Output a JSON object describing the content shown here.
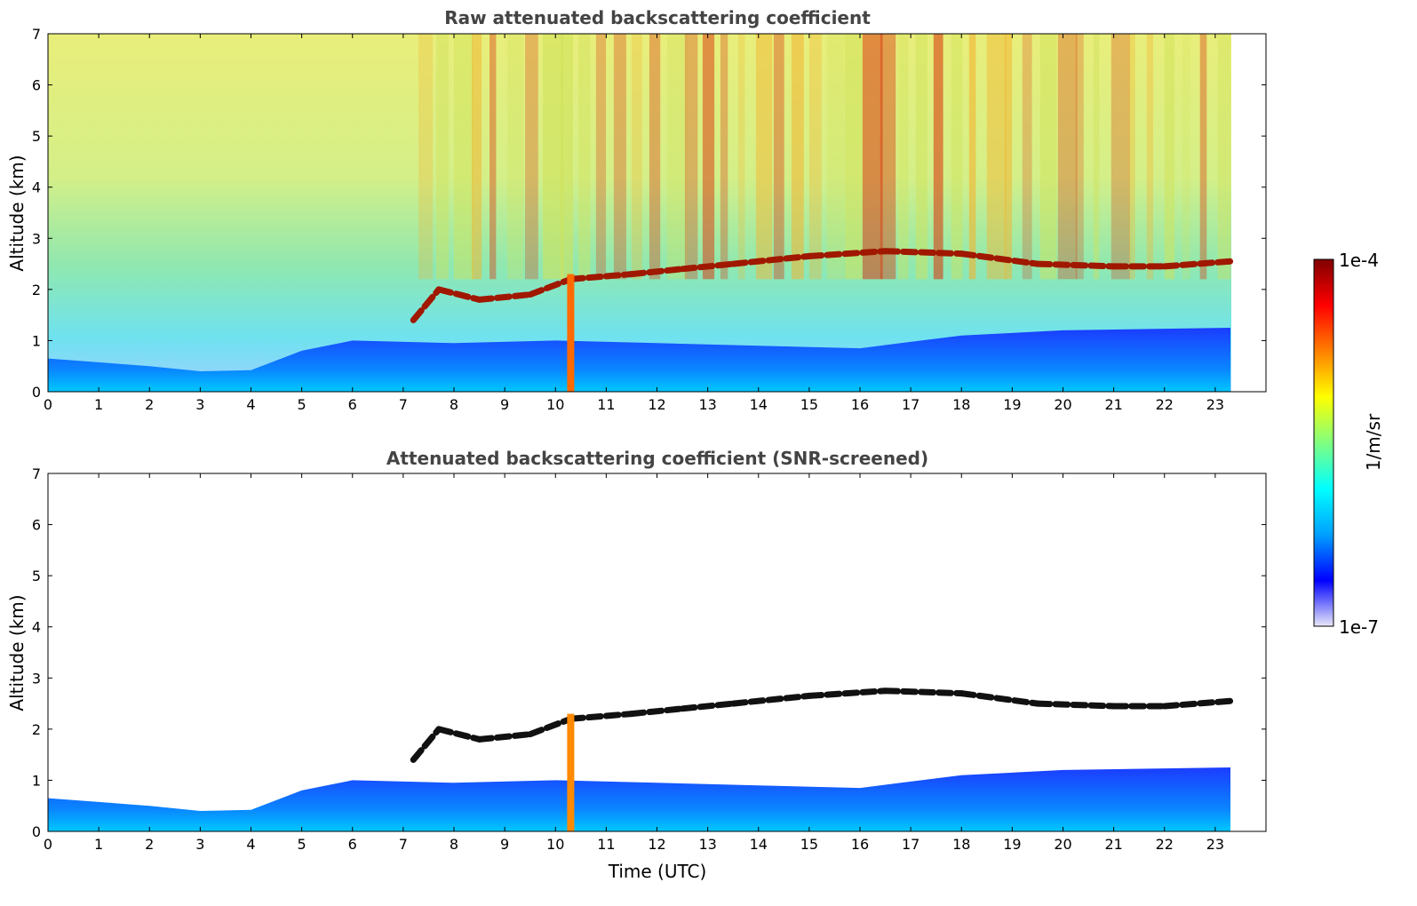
{
  "chart_data": [
    {
      "type": "heatmap",
      "title": "Raw attenuated backscattering coefficient",
      "xlabel": "",
      "ylabel": "Altitude (km)",
      "xlim": [
        0,
        24
      ],
      "ylim": [
        0,
        7
      ],
      "x_ticks": [
        "0",
        "1",
        "2",
        "3",
        "4",
        "5",
        "6",
        "7",
        "8",
        "9",
        "10",
        "11",
        "12",
        "13",
        "14",
        "15",
        "16",
        "17",
        "18",
        "19",
        "20",
        "21",
        "22",
        "23"
      ],
      "y_ticks": [
        "0",
        "1",
        "2",
        "3",
        "4",
        "5",
        "6",
        "7"
      ],
      "data_end_time": 23.3,
      "boundary_layer_top_km": [
        [
          0,
          0.65
        ],
        [
          2,
          0.5
        ],
        [
          3,
          0.4
        ],
        [
          4,
          0.42
        ],
        [
          5,
          0.8
        ],
        [
          6,
          1.0
        ],
        [
          8,
          0.95
        ],
        [
          10,
          1.0
        ],
        [
          12,
          0.95
        ],
        [
          14,
          0.9
        ],
        [
          16,
          0.85
        ],
        [
          18,
          1.1
        ],
        [
          20,
          1.2
        ],
        [
          23.3,
          1.25
        ]
      ],
      "cloud_layer_km": [
        [
          7.2,
          1.4
        ],
        [
          7.7,
          2.0
        ],
        [
          8.5,
          1.8
        ],
        [
          9.5,
          1.9
        ],
        [
          10.3,
          2.2
        ],
        [
          11.5,
          2.3
        ],
        [
          12.5,
          2.4
        ],
        [
          13.5,
          2.5
        ],
        [
          15,
          2.65
        ],
        [
          16.5,
          2.75
        ],
        [
          18,
          2.7
        ],
        [
          19.5,
          2.5
        ],
        [
          21,
          2.45
        ],
        [
          22,
          2.45
        ],
        [
          23.3,
          2.55
        ]
      ],
      "colormap": "jet",
      "color_scale": "log"
    },
    {
      "type": "heatmap",
      "title": "Attenuated backscattering coefficient (SNR-screened)",
      "xlabel": "Time (UTC)",
      "ylabel": "Altitude (km)",
      "xlim": [
        0,
        24
      ],
      "ylim": [
        0,
        7
      ],
      "x_ticks": [
        "0",
        "1",
        "2",
        "3",
        "4",
        "5",
        "6",
        "7",
        "8",
        "9",
        "10",
        "11",
        "12",
        "13",
        "14",
        "15",
        "16",
        "17",
        "18",
        "19",
        "20",
        "21",
        "22",
        "23"
      ],
      "y_ticks": [
        "0",
        "1",
        "2",
        "3",
        "4",
        "5",
        "6",
        "7"
      ],
      "data_end_time": 23.3,
      "boundary_layer_top_km": [
        [
          0,
          0.65
        ],
        [
          2,
          0.5
        ],
        [
          3,
          0.4
        ],
        [
          4,
          0.42
        ],
        [
          5,
          0.8
        ],
        [
          6,
          1.0
        ],
        [
          8,
          0.95
        ],
        [
          10,
          1.0
        ],
        [
          12,
          0.95
        ],
        [
          14,
          0.9
        ],
        [
          16,
          0.85
        ],
        [
          18,
          1.1
        ],
        [
          20,
          1.2
        ],
        [
          23.3,
          1.25
        ]
      ],
      "cloud_layer_km": [
        [
          7.2,
          1.4
        ],
        [
          7.7,
          2.0
        ],
        [
          8.5,
          1.8
        ],
        [
          9.5,
          1.9
        ],
        [
          10.3,
          2.2
        ],
        [
          11.5,
          2.3
        ],
        [
          12.5,
          2.4
        ],
        [
          13.5,
          2.5
        ],
        [
          15,
          2.65
        ],
        [
          16.5,
          2.75
        ],
        [
          18,
          2.7
        ],
        [
          19.5,
          2.5
        ],
        [
          21,
          2.45
        ],
        [
          22,
          2.45
        ],
        [
          23.3,
          2.55
        ]
      ],
      "colormap": "jet",
      "color_scale": "log"
    }
  ],
  "colorbar": {
    "label": "1/m/sr",
    "max_label": "1e-4",
    "min_label": "1e-7",
    "stops": [
      "#e8e8f8",
      "#0000ff",
      "#00a0ff",
      "#00ffff",
      "#80ff80",
      "#ffff00",
      "#ff8000",
      "#ff0000",
      "#800000"
    ]
  }
}
